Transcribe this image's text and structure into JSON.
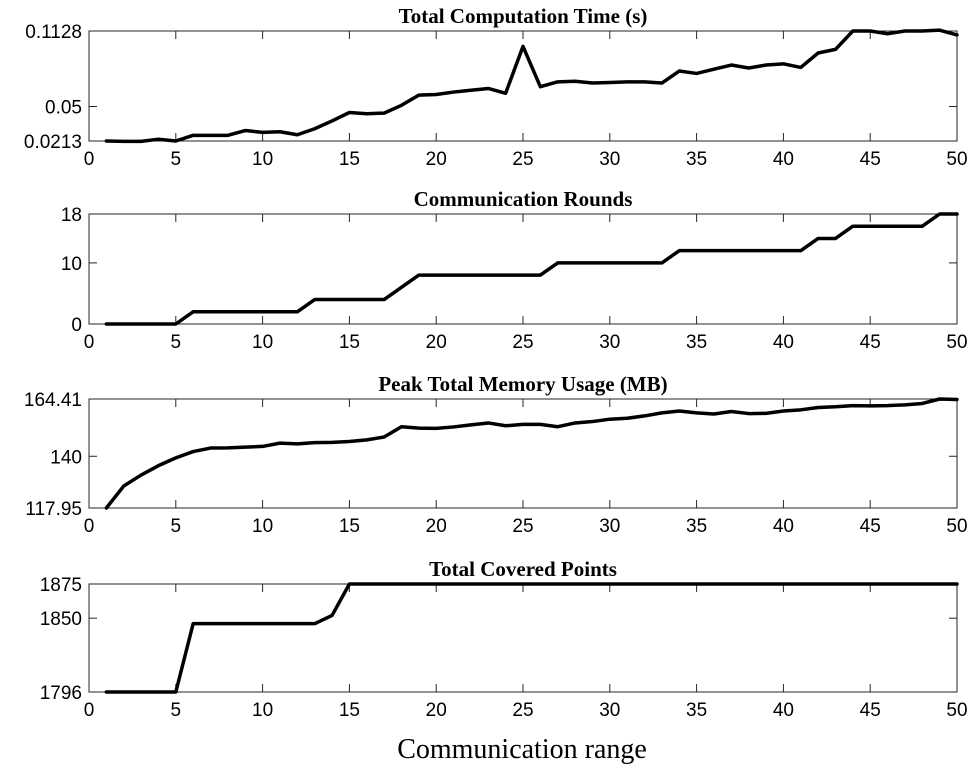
{
  "chart_data": [
    {
      "type": "line",
      "title": "Total Computation Time (s)",
      "xlim": [
        0,
        50
      ],
      "ylim": [
        0.0213,
        0.1128
      ],
      "xticks": [
        0,
        5,
        10,
        15,
        20,
        25,
        30,
        35,
        40,
        45,
        50
      ],
      "yticks": [
        0.0213,
        0.05,
        0.1128
      ],
      "ytick_labels": [
        "0.0213",
        "0.05",
        "0.1128"
      ],
      "x": [
        1,
        2,
        3,
        4,
        5,
        6,
        7,
        8,
        9,
        10,
        11,
        12,
        13,
        14,
        15,
        16,
        17,
        18,
        19,
        20,
        21,
        22,
        23,
        24,
        25,
        26,
        27,
        28,
        29,
        30,
        31,
        32,
        33,
        34,
        35,
        36,
        37,
        38,
        39,
        40,
        41,
        42,
        43,
        44,
        45,
        46,
        47,
        48,
        49,
        50
      ],
      "series": [
        {
          "values": [
            0.0213,
            0.021,
            0.021,
            0.0228,
            0.0213,
            0.026,
            0.026,
            0.026,
            0.03,
            0.0285,
            0.029,
            0.0265,
            0.0315,
            0.038,
            0.045,
            0.044,
            0.0445,
            0.051,
            0.0595,
            0.06,
            0.062,
            0.0635,
            0.065,
            0.061,
            0.1,
            0.0665,
            0.0705,
            0.071,
            0.0695,
            0.07,
            0.0705,
            0.0705,
            0.0695,
            0.0795,
            0.0775,
            0.081,
            0.0845,
            0.082,
            0.0845,
            0.0855,
            0.0825,
            0.0945,
            0.0975,
            0.1128,
            0.1128,
            0.1105,
            0.1128,
            0.1128,
            0.1135,
            0.1095
          ]
        }
      ]
    },
    {
      "type": "line",
      "title": "Communication Rounds",
      "xlim": [
        0,
        50
      ],
      "ylim": [
        0,
        18
      ],
      "xticks": [
        0,
        5,
        10,
        15,
        20,
        25,
        30,
        35,
        40,
        45,
        50
      ],
      "yticks": [
        0,
        10,
        18
      ],
      "ytick_labels": [
        "0",
        "10",
        "18"
      ],
      "x": [
        1,
        2,
        3,
        4,
        5,
        6,
        7,
        8,
        9,
        10,
        11,
        12,
        13,
        14,
        15,
        16,
        17,
        18,
        19,
        20,
        21,
        22,
        23,
        24,
        25,
        26,
        27,
        28,
        29,
        30,
        31,
        32,
        33,
        34,
        35,
        36,
        37,
        38,
        39,
        40,
        41,
        42,
        43,
        44,
        45,
        46,
        47,
        48,
        49,
        50
      ],
      "series": [
        {
          "values": [
            0,
            0,
            0,
            0,
            0,
            2,
            2,
            2,
            2,
            2,
            2,
            2,
            4,
            4,
            4,
            4,
            4,
            6,
            8,
            8,
            8,
            8,
            8,
            8,
            8,
            8,
            10,
            10,
            10,
            10,
            10,
            10,
            10,
            12,
            12,
            12,
            12,
            12,
            12,
            12,
            12,
            14,
            14,
            16,
            16,
            16,
            16,
            16,
            18,
            18
          ]
        }
      ]
    },
    {
      "type": "line",
      "title": "Peak Total Memory Usage (MB)",
      "xlim": [
        0,
        50
      ],
      "ylim": [
        117.95,
        164.41
      ],
      "xticks": [
        0,
        5,
        10,
        15,
        20,
        25,
        30,
        35,
        40,
        45,
        50
      ],
      "yticks": [
        117.95,
        140,
        164.41
      ],
      "ytick_labels": [
        "117.95",
        "140",
        "164.41"
      ],
      "x": [
        1,
        2,
        3,
        4,
        5,
        6,
        7,
        8,
        9,
        10,
        11,
        12,
        13,
        14,
        15,
        16,
        17,
        18,
        19,
        20,
        21,
        22,
        23,
        24,
        25,
        26,
        27,
        28,
        29,
        30,
        31,
        32,
        33,
        34,
        35,
        36,
        37,
        38,
        39,
        40,
        41,
        42,
        43,
        44,
        45,
        46,
        47,
        48,
        49,
        50
      ],
      "series": [
        {
          "values": [
            117.95,
            127.3,
            132,
            136,
            139.3,
            142,
            143.5,
            143.6,
            143.9,
            144.2,
            145.6,
            145.3,
            145.8,
            145.9,
            146.3,
            147,
            148.2,
            152.6,
            152,
            151.9,
            152.5,
            153.4,
            154.2,
            153,
            153.6,
            153.6,
            152.6,
            154.2,
            154.8,
            155.8,
            156.2,
            157.2,
            158.5,
            159.3,
            158.5,
            158,
            159.1,
            158.2,
            158.3,
            159.3,
            159.8,
            160.8,
            161.1,
            161.6,
            161.5,
            161.6,
            161.9,
            162.5,
            164.41,
            164.2
          ]
        }
      ]
    },
    {
      "type": "line",
      "title": "Total Covered Points",
      "xlim": [
        0,
        50
      ],
      "ylim": [
        1796,
        1875
      ],
      "xticks": [
        0,
        5,
        10,
        15,
        20,
        25,
        30,
        35,
        40,
        45,
        50
      ],
      "yticks": [
        1796,
        1850,
        1875
      ],
      "ytick_labels": [
        "1796",
        "1850",
        "1875"
      ],
      "xlabel": "Communication range",
      "x": [
        1,
        2,
        3,
        4,
        5,
        6,
        7,
        8,
        9,
        10,
        11,
        12,
        13,
        14,
        15,
        16,
        17,
        18,
        19,
        20,
        21,
        22,
        23,
        24,
        25,
        26,
        27,
        28,
        29,
        30,
        31,
        32,
        33,
        34,
        35,
        36,
        37,
        38,
        39,
        40,
        41,
        42,
        43,
        44,
        45,
        46,
        47,
        48,
        49,
        50
      ],
      "series": [
        {
          "values": [
            1796,
            1796,
            1796,
            1796,
            1796,
            1846,
            1846,
            1846,
            1846,
            1846,
            1846,
            1846,
            1846,
            1852,
            1875,
            1875,
            1875,
            1875,
            1875,
            1875,
            1875,
            1875,
            1875,
            1875,
            1875,
            1875,
            1875,
            1875,
            1875,
            1875,
            1875,
            1875,
            1875,
            1875,
            1875,
            1875,
            1875,
            1875,
            1875,
            1875,
            1875,
            1875,
            1875,
            1875,
            1875,
            1875,
            1875,
            1875,
            1875,
            1875
          ]
        }
      ]
    }
  ]
}
